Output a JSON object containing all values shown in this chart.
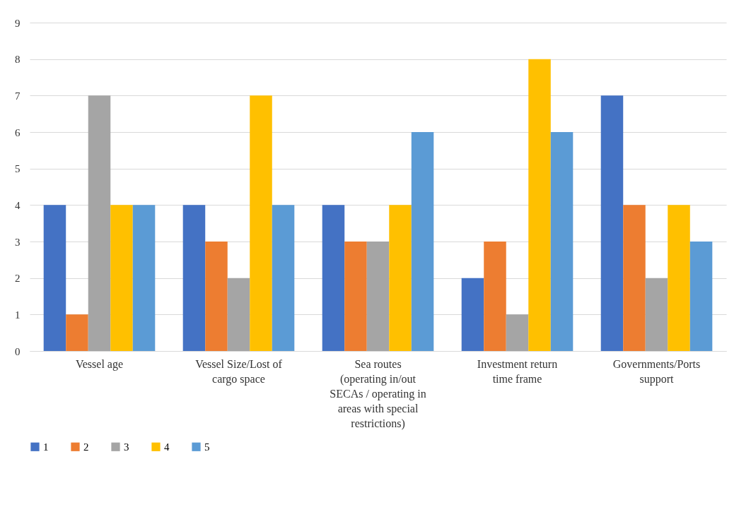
{
  "chart_data": {
    "type": "bar",
    "categories": [
      "Vessel age",
      "Vessel Size/Lost of cargo space",
      "Sea routes (operating in/out SECAs / operating in areas with special restrictions)",
      "Investment return time frame",
      "Governments/Ports support"
    ],
    "series": [
      {
        "name": "1",
        "color": "#4472c4",
        "values": [
          4,
          4,
          4,
          2,
          7
        ]
      },
      {
        "name": "2",
        "color": "#ed7d31",
        "values": [
          1,
          3,
          3,
          3,
          4
        ]
      },
      {
        "name": "3",
        "color": "#a5a5a5",
        "values": [
          7,
          2,
          3,
          1,
          2
        ]
      },
      {
        "name": "4",
        "color": "#ffc000",
        "values": [
          4,
          7,
          4,
          8,
          4
        ]
      },
      {
        "name": "5",
        "color": "#5b9bd5",
        "values": [
          4,
          4,
          6,
          6,
          3
        ]
      }
    ],
    "ylim": [
      0,
      9
    ],
    "yticks": [
      0,
      1,
      2,
      3,
      4,
      5,
      6,
      7,
      8,
      9
    ],
    "grid": "y",
    "legend": "bottom"
  }
}
